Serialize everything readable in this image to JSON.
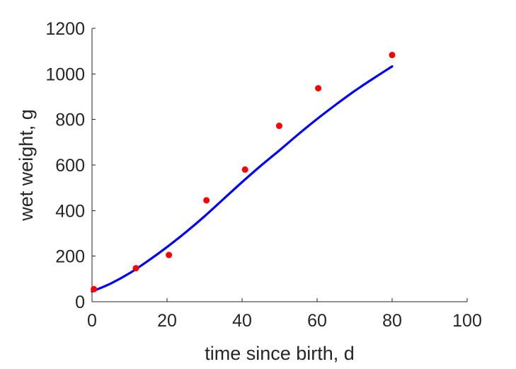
{
  "chart_data": {
    "type": "scatter",
    "title": "",
    "xlabel": "time since birth, d",
    "ylabel": "wet weight, g",
    "xlim": [
      0,
      100
    ],
    "ylim": [
      0,
      1200
    ],
    "xticks": [
      0,
      20,
      40,
      60,
      80,
      100
    ],
    "yticks": [
      0,
      200,
      400,
      600,
      800,
      1000,
      1200
    ],
    "grid": false,
    "legend": false,
    "series": [
      {
        "kind": "scatter",
        "color": "#ff0000",
        "points": [
          {
            "x": 0.5,
            "y": 55
          },
          {
            "x": 11.7,
            "y": 147
          },
          {
            "x": 20.5,
            "y": 205
          },
          {
            "x": 30.5,
            "y": 445
          },
          {
            "x": 40.8,
            "y": 580
          },
          {
            "x": 49.9,
            "y": 772
          },
          {
            "x": 60.3,
            "y": 937
          },
          {
            "x": 80.0,
            "y": 1083
          }
        ]
      },
      {
        "kind": "line",
        "color": "#0000ff",
        "points": [
          {
            "x": 0,
            "y": 45
          },
          {
            "x": 5,
            "y": 80
          },
          {
            "x": 10,
            "y": 125
          },
          {
            "x": 15,
            "y": 180
          },
          {
            "x": 20,
            "y": 240
          },
          {
            "x": 25,
            "y": 305
          },
          {
            "x": 30,
            "y": 375
          },
          {
            "x": 35,
            "y": 450
          },
          {
            "x": 40,
            "y": 525
          },
          {
            "x": 45,
            "y": 597
          },
          {
            "x": 50,
            "y": 665
          },
          {
            "x": 55,
            "y": 735
          },
          {
            "x": 60,
            "y": 802
          },
          {
            "x": 65,
            "y": 865
          },
          {
            "x": 70,
            "y": 925
          },
          {
            "x": 75,
            "y": 980
          },
          {
            "x": 80,
            "y": 1033
          }
        ]
      }
    ]
  }
}
